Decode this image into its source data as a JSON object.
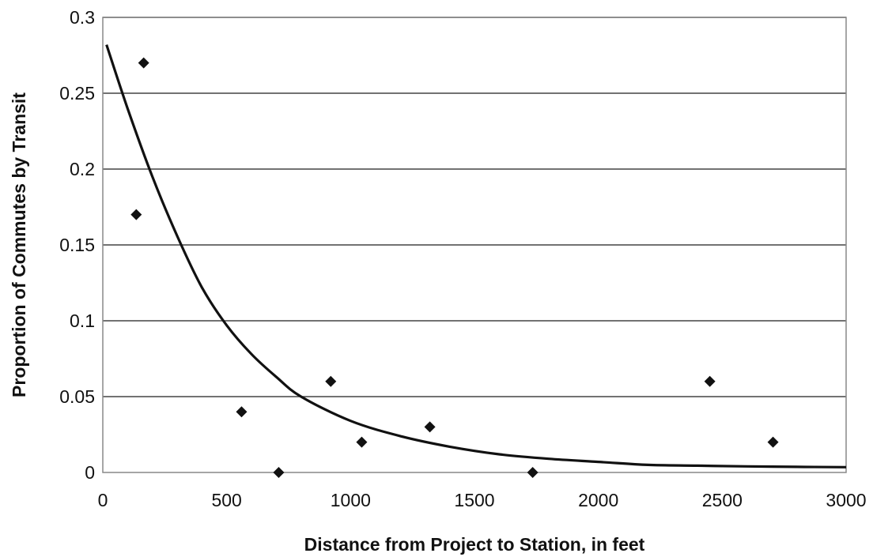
{
  "chart_data": {
    "type": "scatter",
    "title": "",
    "xlabel": "Distance from Project to Station, in feet",
    "ylabel": "Proportion of Commutes by Transit",
    "xlim": [
      0,
      3000
    ],
    "ylim": [
      0,
      0.3
    ],
    "x_ticks": [
      0,
      500,
      1000,
      1500,
      2000,
      2500,
      3000
    ],
    "x_tick_labels": [
      "0",
      "500",
      "1000",
      "1500",
      "2000",
      "2500",
      "3000"
    ],
    "y_ticks": [
      0,
      0.05,
      0.1,
      0.15,
      0.2,
      0.25,
      0.3
    ],
    "y_tick_labels": [
      "0",
      "0.05",
      "0.1",
      "0.15",
      "0.2",
      "0.25",
      "0.3"
    ],
    "grid": "horizontal",
    "legend": "none",
    "points": [
      {
        "x": 135,
        "y": 0.17
      },
      {
        "x": 165,
        "y": 0.27
      },
      {
        "x": 560,
        "y": 0.04
      },
      {
        "x": 710,
        "y": 0.0
      },
      {
        "x": 920,
        "y": 0.06
      },
      {
        "x": 1045,
        "y": 0.02
      },
      {
        "x": 1320,
        "y": 0.03
      },
      {
        "x": 1735,
        "y": 0.0
      },
      {
        "x": 2450,
        "y": 0.06
      },
      {
        "x": 2705,
        "y": 0.02
      }
    ],
    "trendline": {
      "type": "exponential",
      "x": [
        15,
        100,
        200,
        300,
        400,
        500,
        600,
        700,
        800,
        1000,
        1200,
        1400,
        1600,
        1800,
        2000,
        2200,
        2400,
        2600,
        2800,
        3000
      ],
      "y": [
        0.282,
        0.24,
        0.195,
        0.156,
        0.122,
        0.097,
        0.078,
        0.063,
        0.05,
        0.034,
        0.024,
        0.017,
        0.012,
        0.009,
        0.007,
        0.005,
        0.0045,
        0.004,
        0.0037,
        0.0035
      ]
    },
    "colors": {
      "marker": "#111111",
      "line": "#111111",
      "grid": "#444444",
      "frame": "#888888"
    }
  }
}
